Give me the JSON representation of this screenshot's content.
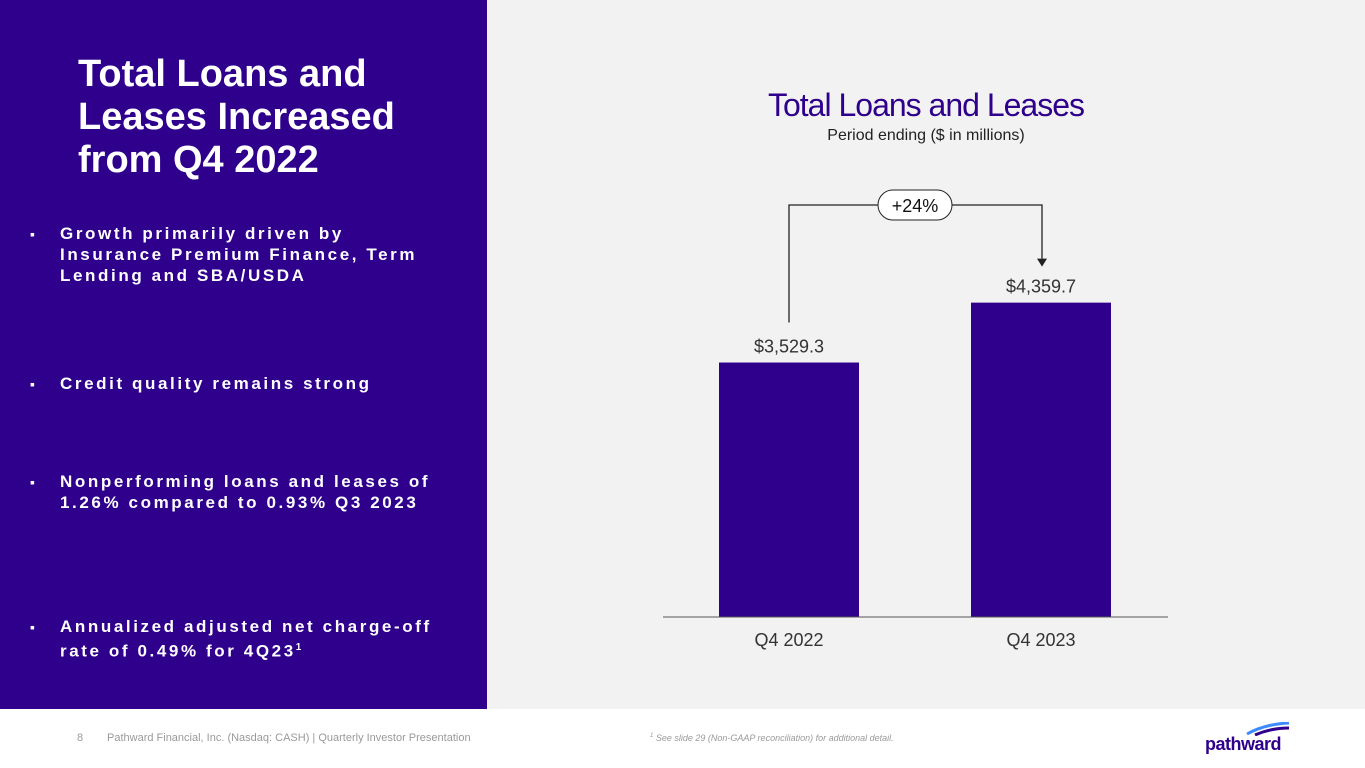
{
  "headline": "Total Loans and Leases Increased from Q4 2022",
  "bullets": [
    {
      "marker": "▪",
      "text": "Growth primarily driven by Insurance Premium Finance, Term Lending and SBA/USDA",
      "sup": ""
    },
    {
      "marker": "▪",
      "text": "Credit quality remains strong",
      "sup": ""
    },
    {
      "marker": "▪",
      "text": "Nonperforming loans and leases of 1.26% compared to 0.93% Q3 2023",
      "sup": ""
    },
    {
      "marker": "▪",
      "text": "Annualized adjusted net charge-off rate of 0.49% for 4Q23",
      "sup": "1"
    }
  ],
  "chart_data": {
    "type": "bar",
    "title": "Total Loans and Leases",
    "subtitle": "Period ending ($ in millions)",
    "categories": [
      "Q4 2022",
      "Q4 2023"
    ],
    "values": [
      3529.3,
      4359.7
    ],
    "value_labels": [
      "$3,529.3",
      "$4,359.7"
    ],
    "annotation": "+24%",
    "ylim": [
      0,
      5000
    ],
    "bar_color": "#2e008b",
    "grid": false,
    "legend": "none"
  },
  "footer": {
    "page_number": "8",
    "text": "Pathward Financial, Inc. (Nasdaq: CASH) | Quarterly Investor Presentation",
    "footnote_sup": "1",
    "footnote": " See slide 29 (Non-GAAP reconciliation) for additional detail."
  },
  "logo": {
    "text": "pathward",
    "color": "#2e008b",
    "accent": "#3d8bff"
  }
}
